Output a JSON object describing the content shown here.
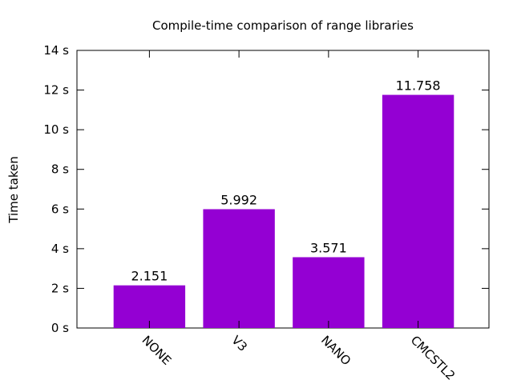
{
  "chart_data": {
    "type": "bar",
    "title": "Compile-time comparison of range libraries",
    "ylabel": "Time taken",
    "xlabel": "",
    "categories": [
      "NONE",
      "V3",
      "NANO",
      "CMCSTL2"
    ],
    "values": [
      2.151,
      5.992,
      3.571,
      11.758
    ],
    "data_labels": [
      "2.151",
      "5.992",
      "3.571",
      "11.758"
    ],
    "ylim": [
      0,
      14
    ],
    "yticks": [
      {
        "value": 0,
        "label": "0  s"
      },
      {
        "value": 2,
        "label": "2  s"
      },
      {
        "value": 4,
        "label": "4  s"
      },
      {
        "value": 6,
        "label": "6  s"
      },
      {
        "value": 8,
        "label": "8  s"
      },
      {
        "value": 10,
        "label": "10  s"
      },
      {
        "value": 12,
        "label": "12  s"
      },
      {
        "value": 14,
        "label": "14  s"
      }
    ],
    "bar_color": "#9400d3",
    "grid": false,
    "legend": "none"
  }
}
